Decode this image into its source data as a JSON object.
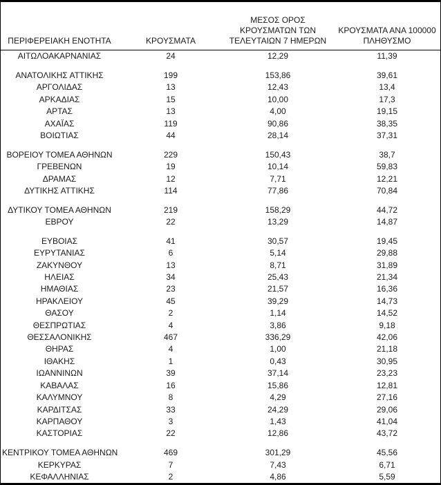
{
  "document": {
    "type": "regional-covid-cases-table",
    "text_color": "#1b1b1b",
    "border_color": "#000000",
    "background_color": "#ffffff"
  },
  "table": {
    "headers": {
      "region": "ΠΕΡΙΦΕΡΕΙΑΚΗ ΕΝΟΤΗΤΑ",
      "cases": "ΚΡΟΥΣΜΑΤΑ",
      "avg_7d": "ΜΕΣΟΣ ΟΡΟΣ\nΚΡΟΥΣΜΑΤΩΝ ΤΩΝ\nΤΕΛΕΥΤΑΙΩΝ 7 ΗΜΕΡΩΝ",
      "per_100k": "ΚΡΟΥΣΜΑΤΑ ΑΝΑ 100000\nΠΛΗΘΥΣΜΟ"
    },
    "rows": [
      {
        "region": "ΑΙΤΩΛΟΑΚΑΡΝΑΝΙΑΣ",
        "cases": "24",
        "avg_7d": "12,29",
        "per_100k": "11,39",
        "gap_before": false
      },
      {
        "region": "ΑΝΑΤΟΛΙΚΗΣ ΑΤΤΙΚΗΣ",
        "cases": "199",
        "avg_7d": "153,86",
        "per_100k": "39,61",
        "gap_before": true
      },
      {
        "region": "ΑΡΓΟΛΙΔΑΣ",
        "cases": "13",
        "avg_7d": "12,43",
        "per_100k": "13,4",
        "gap_before": false
      },
      {
        "region": "ΑΡΚΑΔΙΑΣ",
        "cases": "15",
        "avg_7d": "10,00",
        "per_100k": "17,3",
        "gap_before": false
      },
      {
        "region": "ΑΡΤΑΣ",
        "cases": "13",
        "avg_7d": "4,00",
        "per_100k": "19,15",
        "gap_before": false
      },
      {
        "region": "ΑΧΑΪΑΣ",
        "cases": "119",
        "avg_7d": "90,86",
        "per_100k": "38,35",
        "gap_before": false
      },
      {
        "region": "ΒΟΙΩΤΙΑΣ",
        "cases": "44",
        "avg_7d": "28,14",
        "per_100k": "37,31",
        "gap_before": false
      },
      {
        "region": "ΒΟΡΕΙΟΥ ΤΟΜΕΑ ΑΘΗΝΩΝ",
        "cases": "229",
        "avg_7d": "150,43",
        "per_100k": "38,7",
        "gap_before": true
      },
      {
        "region": "ΓΡΕΒΕΝΩΝ",
        "cases": "19",
        "avg_7d": "10,14",
        "per_100k": "59,83",
        "gap_before": false
      },
      {
        "region": "ΔΡΑΜΑΣ",
        "cases": "12",
        "avg_7d": "7,71",
        "per_100k": "12,21",
        "gap_before": false
      },
      {
        "region": "ΔΥΤΙΚΗΣ ΑΤΤΙΚΗΣ",
        "cases": "114",
        "avg_7d": "77,86",
        "per_100k": "70,84",
        "gap_before": false
      },
      {
        "region": "ΔΥΤΙΚΟΥ ΤΟΜΕΑ ΑΘΗΝΩΝ",
        "cases": "219",
        "avg_7d": "158,29",
        "per_100k": "44,72",
        "gap_before": true
      },
      {
        "region": "ΕΒΡΟΥ",
        "cases": "22",
        "avg_7d": "13,29",
        "per_100k": "14,87",
        "gap_before": false
      },
      {
        "region": "ΕΥΒΟΙΑΣ",
        "cases": "41",
        "avg_7d": "30,57",
        "per_100k": "19,45",
        "gap_before": true
      },
      {
        "region": "ΕΥΡΥΤΑΝΙΑΣ",
        "cases": "6",
        "avg_7d": "5,14",
        "per_100k": "29,88",
        "gap_before": false
      },
      {
        "region": "ΖΑΚΥΝΘΟΥ",
        "cases": "13",
        "avg_7d": "8,71",
        "per_100k": "31,89",
        "gap_before": false
      },
      {
        "region": "ΗΛΕΙΑΣ",
        "cases": "34",
        "avg_7d": "25,43",
        "per_100k": "21,34",
        "gap_before": false
      },
      {
        "region": "ΗΜΑΘΙΑΣ",
        "cases": "23",
        "avg_7d": "21,57",
        "per_100k": "16,36",
        "gap_before": false
      },
      {
        "region": "ΗΡΑΚΛΕΙΟΥ",
        "cases": "45",
        "avg_7d": "39,29",
        "per_100k": "14,73",
        "gap_before": false
      },
      {
        "region": "ΘΑΣΟΥ",
        "cases": "2",
        "avg_7d": "1,14",
        "per_100k": "14,52",
        "gap_before": false
      },
      {
        "region": "ΘΕΣΠΡΩΤΙΑΣ",
        "cases": "4",
        "avg_7d": "3,86",
        "per_100k": "9,18",
        "gap_before": false
      },
      {
        "region": "ΘΕΣΣΑΛΟΝΙΚΗΣ",
        "cases": "467",
        "avg_7d": "336,29",
        "per_100k": "42,06",
        "gap_before": false
      },
      {
        "region": "ΘΗΡΑΣ",
        "cases": "4",
        "avg_7d": "1,00",
        "per_100k": "21,18",
        "gap_before": false
      },
      {
        "region": "ΙΘΑΚΗΣ",
        "cases": "1",
        "avg_7d": "0,43",
        "per_100k": "30,95",
        "gap_before": false
      },
      {
        "region": "ΙΩΑΝΝΙΝΩΝ",
        "cases": "39",
        "avg_7d": "37,14",
        "per_100k": "23,23",
        "gap_before": false
      },
      {
        "region": "ΚΑΒΑΛΑΣ",
        "cases": "16",
        "avg_7d": "15,86",
        "per_100k": "12,81",
        "gap_before": false
      },
      {
        "region": "ΚΑΛΥΜΝΟΥ",
        "cases": "8",
        "avg_7d": "4,29",
        "per_100k": "27,16",
        "gap_before": false
      },
      {
        "region": "ΚΑΡΔΙΤΣΑΣ",
        "cases": "33",
        "avg_7d": "24,29",
        "per_100k": "29,06",
        "gap_before": false
      },
      {
        "region": "ΚΑΡΠΑΘΟΥ",
        "cases": "3",
        "avg_7d": "1,43",
        "per_100k": "41,04",
        "gap_before": false
      },
      {
        "region": "ΚΑΣΤΟΡΙΑΣ",
        "cases": "22",
        "avg_7d": "12,86",
        "per_100k": "43,72",
        "gap_before": false
      },
      {
        "region": "ΚΕΝΤΡΙΚΟΥ ΤΟΜΕΑ ΑΘΗΝΩΝ",
        "cases": "469",
        "avg_7d": "301,29",
        "per_100k": "45,56",
        "gap_before": true
      },
      {
        "region": "ΚΕΡΚΥΡΑΣ",
        "cases": "7",
        "avg_7d": "7,43",
        "per_100k": "6,71",
        "gap_before": false
      },
      {
        "region": "ΚΕΦΑΛΛΗΝΙΑΣ",
        "cases": "2",
        "avg_7d": "4,86",
        "per_100k": "5,59",
        "gap_before": false
      }
    ]
  },
  "chart_data": {
    "type": "table",
    "title": "",
    "columns": [
      "ΠΕΡΙΦΕΡΕΙΑΚΗ ΕΝΟΤΗΤΑ",
      "ΚΡΟΥΣΜΑΤΑ",
      "ΜΕΣΟΣ ΟΡΟΣ ΚΡΟΥΣΜΑΤΩΝ ΤΩΝ ΤΕΛΕΥΤΑΙΩΝ 7 ΗΜΕΡΩΝ",
      "ΚΡΟΥΣΜΑΤΑ ΑΝΑ 100000 ΠΛΗΘΥΣΜΟ"
    ],
    "categories": [
      "ΑΙΤΩΛΟΑΚΑΡΝΑΝΙΑΣ",
      "ΑΝΑΤΟΛΙΚΗΣ ΑΤΤΙΚΗΣ",
      "ΑΡΓΟΛΙΔΑΣ",
      "ΑΡΚΑΔΙΑΣ",
      "ΑΡΤΑΣ",
      "ΑΧΑΪΑΣ",
      "ΒΟΙΩΤΙΑΣ",
      "ΒΟΡΕΙΟΥ ΤΟΜΕΑ ΑΘΗΝΩΝ",
      "ΓΡΕΒΕΝΩΝ",
      "ΔΡΑΜΑΣ",
      "ΔΥΤΙΚΗΣ ΑΤΤΙΚΗΣ",
      "ΔΥΤΙΚΟΥ ΤΟΜΕΑ ΑΘΗΝΩΝ",
      "ΕΒΡΟΥ",
      "ΕΥΒΟΙΑΣ",
      "ΕΥΡΥΤΑΝΙΑΣ",
      "ΖΑΚΥΝΘΟΥ",
      "ΗΛΕΙΑΣ",
      "ΗΜΑΘΙΑΣ",
      "ΗΡΑΚΛΕΙΟΥ",
      "ΘΑΣΟΥ",
      "ΘΕΣΠΡΩΤΙΑΣ",
      "ΘΕΣΣΑΛΟΝΙΚΗΣ",
      "ΘΗΡΑΣ",
      "ΙΘΑΚΗΣ",
      "ΙΩΑΝΝΙΝΩΝ",
      "ΚΑΒΑΛΑΣ",
      "ΚΑΛΥΜΝΟΥ",
      "ΚΑΡΔΙΤΣΑΣ",
      "ΚΑΡΠΑΘΟΥ",
      "ΚΑΣΤΟΡΙΑΣ",
      "ΚΕΝΤΡΙΚΟΥ ΤΟΜΕΑ ΑΘΗΝΩΝ",
      "ΚΕΡΚΥΡΑΣ",
      "ΚΕΦΑΛΛΗΝΙΑΣ"
    ],
    "series": [
      {
        "name": "ΚΡΟΥΣΜΑΤΑ",
        "values": [
          24,
          199,
          13,
          15,
          13,
          119,
          44,
          229,
          19,
          12,
          114,
          219,
          22,
          41,
          6,
          13,
          34,
          23,
          45,
          2,
          4,
          467,
          4,
          1,
          39,
          16,
          8,
          33,
          3,
          22,
          469,
          7,
          2
        ]
      },
      {
        "name": "ΜΕΣΟΣ ΟΡΟΣ ΚΡΟΥΣΜΑΤΩΝ ΤΩΝ ΤΕΛΕΥΤΑΙΩΝ 7 ΗΜΕΡΩΝ",
        "values": [
          12.29,
          153.86,
          12.43,
          10.0,
          4.0,
          90.86,
          28.14,
          150.43,
          10.14,
          7.71,
          77.86,
          158.29,
          13.29,
          30.57,
          5.14,
          8.71,
          25.43,
          21.57,
          39.29,
          1.14,
          3.86,
          336.29,
          1.0,
          0.43,
          37.14,
          15.86,
          4.29,
          24.29,
          1.43,
          12.86,
          301.29,
          7.43,
          4.86
        ]
      },
      {
        "name": "ΚΡΟΥΣΜΑΤΑ ΑΝΑ 100000 ΠΛΗΘΥΣΜΟ",
        "values": [
          11.39,
          39.61,
          13.4,
          17.3,
          19.15,
          38.35,
          37.31,
          38.7,
          59.83,
          12.21,
          70.84,
          44.72,
          14.87,
          19.45,
          29.88,
          31.89,
          21.34,
          16.36,
          14.73,
          14.52,
          9.18,
          42.06,
          21.18,
          30.95,
          23.23,
          12.81,
          27.16,
          29.06,
          41.04,
          43.72,
          45.56,
          6.71,
          5.59
        ]
      }
    ]
  }
}
